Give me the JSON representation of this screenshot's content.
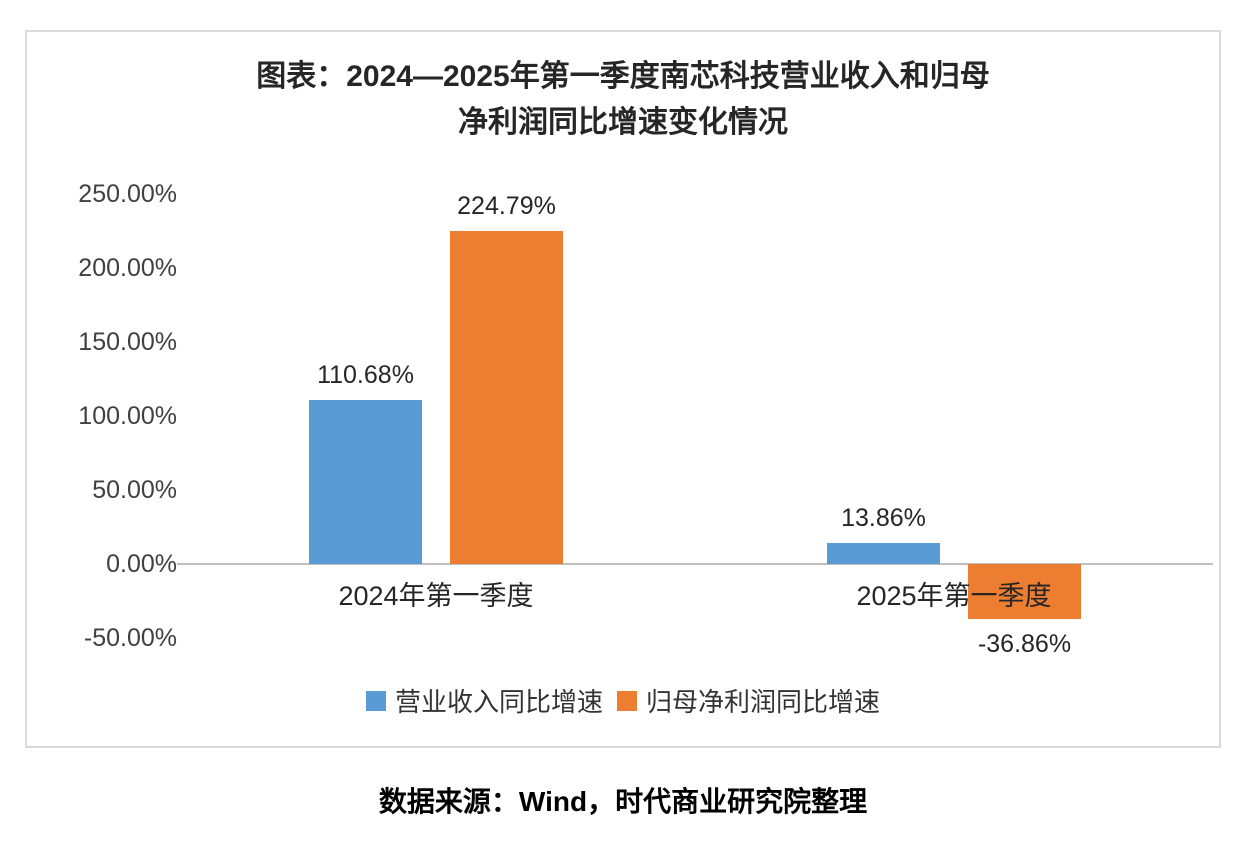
{
  "chart_data": {
    "type": "bar",
    "title": "图表：2024—2025年第一季度南芯科技营业收入和归母净利润同比增速变化情况",
    "title_lines": [
      "图表：2024—2025年第一季度南芯科技营业收入和归母",
      "净利润同比增速变化情况"
    ],
    "categories": [
      "2024年第一季度",
      "2025年第一季度"
    ],
    "series": [
      {
        "name": "营业收入同比增速",
        "color": "#5B9BD5",
        "values": [
          110.68,
          13.86
        ],
        "labels": [
          "110.68%",
          "13.86%"
        ]
      },
      {
        "name": "归母净利润同比增速",
        "color": "#ED7D31",
        "values": [
          224.79,
          -36.86
        ],
        "labels": [
          "224.79%",
          "-36.86%"
        ]
      }
    ],
    "y_tick_labels": [
      "250.00%",
      "200.00%",
      "150.00%",
      "100.00%",
      "50.00%",
      "0.00%",
      "-50.00%"
    ],
    "ylim": [
      -50,
      250
    ],
    "xlabel": "",
    "ylabel": "",
    "grid": false,
    "legend_position": "bottom"
  },
  "source": "数据来源：Wind，时代商业研究院整理"
}
